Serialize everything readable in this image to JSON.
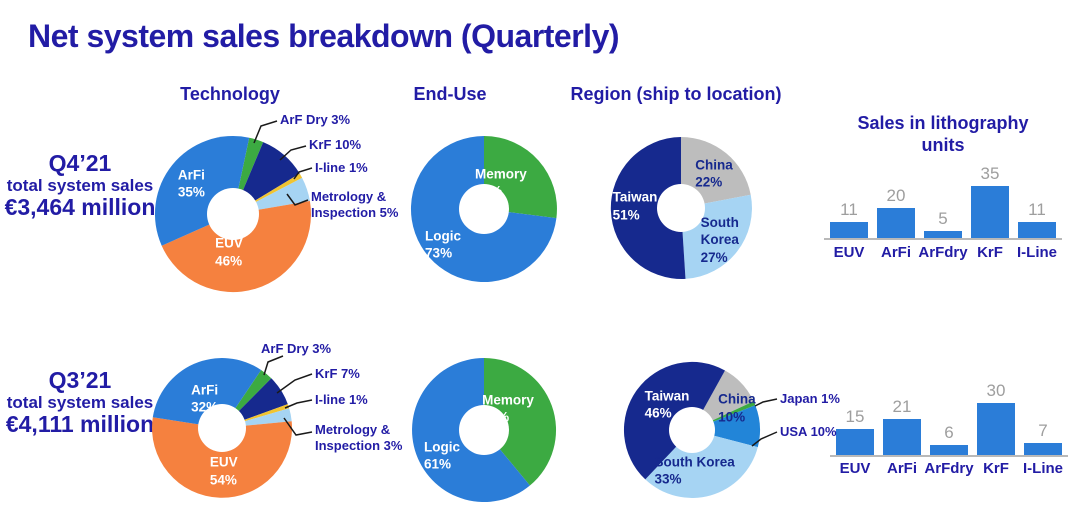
{
  "title": "Net system sales breakdown (Quarterly)",
  "columns": {
    "technology": "Technology",
    "end_use": "End-Use",
    "region": "Region (ship to location)"
  },
  "bar_title": "Sales in lithography units",
  "palette": {
    "navy_text": "#221ca5",
    "blue": "#2b7dd8",
    "orange": "#f5813f",
    "dark_navy": "#16298e",
    "green": "#3caa42",
    "yellow": "#f1c431",
    "light_blue": "#a6d4f3",
    "gray": "#bdbdbd",
    "usa_blue": "#2285d8",
    "bar_blue": "#2b7dd8",
    "value_gray": "#9e9e9e",
    "axis_gray": "#b9b9b9"
  },
  "chart_data": [
    {
      "quarter": "Q4’21",
      "subtitle": "total system sales",
      "total": "€3,464 million",
      "charts": [
        {
          "id": "q4-tech",
          "type": "pie",
          "title": "Technology",
          "slices": [
            {
              "label": "ArF Dry",
              "pct": 3,
              "color": "green",
              "callout": "ArF Dry 3%"
            },
            {
              "label": "KrF",
              "pct": 10,
              "color": "dark_navy",
              "callout": "KrF 10%"
            },
            {
              "label": "I-line",
              "pct": 1,
              "color": "yellow",
              "callout": "I-line 1%"
            },
            {
              "label": "Metrology & Inspection",
              "pct": 5,
              "color": "light_blue",
              "callout": "Metrology &\nInspection 5%"
            },
            {
              "label": "EUV",
              "pct": 46,
              "color": "orange",
              "inside": "EUV\n46%",
              "text": "white"
            },
            {
              "label": "ArFi",
              "pct": 35,
              "color": "blue",
              "inside": "ArFi\n35%",
              "text": "white"
            }
          ]
        },
        {
          "id": "q4-enduse",
          "type": "pie",
          "title": "End-Use",
          "slices": [
            {
              "label": "Memory",
              "pct": 27,
              "color": "green",
              "inside": "Memory\n27%",
              "text": "white"
            },
            {
              "label": "Logic",
              "pct": 73,
              "color": "blue",
              "inside": "Logic\n73%",
              "text": "white"
            }
          ]
        },
        {
          "id": "q4-region",
          "type": "pie",
          "title": "Region (ship to location)",
          "slices": [
            {
              "label": "China",
              "pct": 22,
              "color": "gray",
              "inside": "China\n22%"
            },
            {
              "label": "South Korea",
              "pct": 27,
              "color": "light_blue",
              "inside": "South\nKorea\n27%"
            },
            {
              "label": "Taiwan",
              "pct": 51,
              "color": "dark_navy",
              "inside": "Taiwan\n51%",
              "text": "white"
            }
          ]
        },
        {
          "id": "q4-units",
          "type": "bar",
          "title": "Sales in lithography units",
          "categories": [
            "EUV",
            "ArFi",
            "ArFdry",
            "KrF",
            "I-Line"
          ],
          "values": [
            11,
            20,
            5,
            35,
            11
          ],
          "ylim": [
            0,
            40
          ]
        }
      ]
    },
    {
      "quarter": "Q3’21",
      "subtitle": "total system sales",
      "total": "€4,111 million",
      "charts": [
        {
          "id": "q3-tech",
          "type": "pie",
          "title": "Technology",
          "slices": [
            {
              "label": "ArF Dry",
              "pct": 3,
              "color": "green",
              "callout": "ArF Dry 3%"
            },
            {
              "label": "KrF",
              "pct": 7,
              "color": "dark_navy",
              "callout": "KrF 7%"
            },
            {
              "label": "I-line",
              "pct": 1,
              "color": "yellow",
              "callout": "I-line 1%"
            },
            {
              "label": "Metrology & Inspection",
              "pct": 3,
              "color": "light_blue",
              "callout": "Metrology &\nInspection 3%"
            },
            {
              "label": "EUV",
              "pct": 54,
              "color": "orange",
              "inside": "EUV\n54%",
              "text": "white"
            },
            {
              "label": "ArFi",
              "pct": 32,
              "color": "blue",
              "inside": "ArFi\n32%",
              "text": "white"
            }
          ]
        },
        {
          "id": "q3-enduse",
          "type": "pie",
          "title": "End-Use",
          "slices": [
            {
              "label": "Memory",
              "pct": 39,
              "color": "green",
              "inside": "Memory\n39%",
              "text": "white"
            },
            {
              "label": "Logic",
              "pct": 61,
              "color": "blue",
              "inside": "Logic\n61%",
              "text": "white"
            }
          ]
        },
        {
          "id": "q3-region",
          "type": "pie",
          "title": "Region (ship to location)",
          "slices": [
            {
              "label": "China",
              "pct": 10,
              "color": "gray",
              "inside": "China\n10%"
            },
            {
              "label": "Japan",
              "pct": 1,
              "color": "green",
              "callout": "Japan 1%"
            },
            {
              "label": "USA",
              "pct": 10,
              "color": "usa_blue",
              "callout": "USA 10%"
            },
            {
              "label": "South Korea",
              "pct": 33,
              "color": "light_blue",
              "inside": "South Korea\n33%"
            },
            {
              "label": "Taiwan",
              "pct": 46,
              "color": "dark_navy",
              "inside": "Taiwan\n46%",
              "text": "white"
            }
          ]
        },
        {
          "id": "q3-units",
          "type": "bar",
          "title": "Sales in lithography units",
          "categories": [
            "EUV",
            "ArFi",
            "ArFdry",
            "KrF",
            "I-Line"
          ],
          "values": [
            15,
            21,
            6,
            30,
            7
          ],
          "ylim": [
            0,
            40
          ]
        }
      ]
    }
  ]
}
